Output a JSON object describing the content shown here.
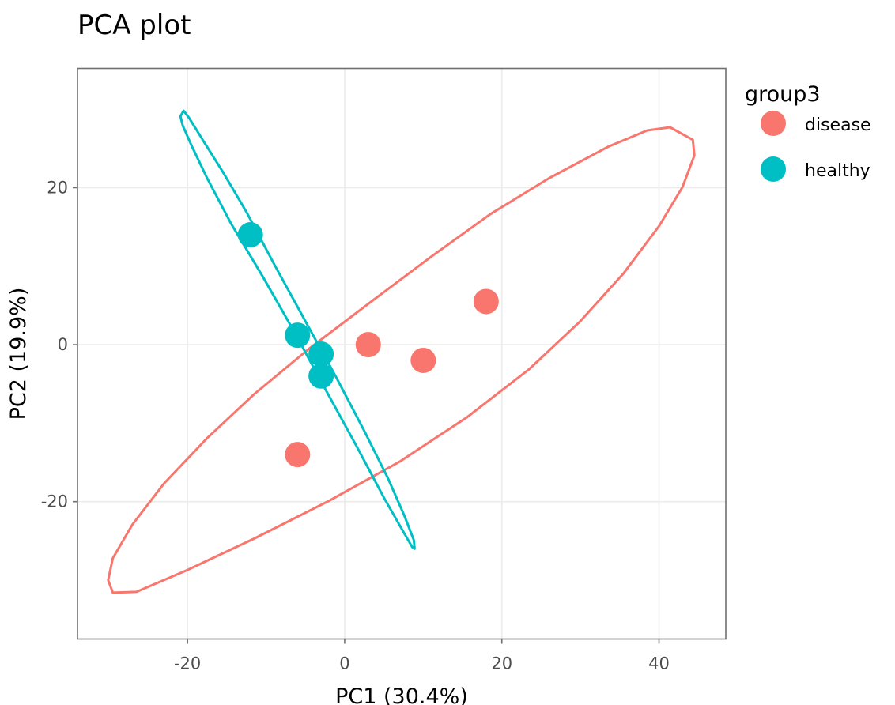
{
  "chart_data": {
    "type": "scatter",
    "title": "PCA plot",
    "xlabel": "PC1 (30.4%)",
    "ylabel": "PC2 (19.9%)",
    "xlim": [
      -34,
      48.5
    ],
    "ylim": [
      -37.5,
      35.2
    ],
    "x_ticks": [
      -20,
      0,
      20,
      40
    ],
    "y_ticks": [
      -20,
      0,
      20
    ],
    "x_tick_labels": [
      "-20",
      "0",
      "20",
      "40"
    ],
    "y_tick_labels": [
      "-20",
      "0",
      "20"
    ],
    "grid": true,
    "legend": {
      "title": "group3",
      "position": "right",
      "entries": [
        "disease",
        "healthy"
      ]
    },
    "series": [
      {
        "name": "disease",
        "color": "#F8766D",
        "points": [
          {
            "x": 3,
            "y": 0
          },
          {
            "x": 10,
            "y": -2
          },
          {
            "x": 18,
            "y": 5.5
          },
          {
            "x": -6,
            "y": -14
          }
        ],
        "ellipse": [
          {
            "x": 41.4,
            "y": 27.7
          },
          {
            "x": 44.3,
            "y": 26.1
          },
          {
            "x": 44.5,
            "y": 24.1
          },
          {
            "x": 43.0,
            "y": 20.1
          },
          {
            "x": 40.0,
            "y": 15.1
          },
          {
            "x": 35.5,
            "y": 9.1
          },
          {
            "x": 30.0,
            "y": 3.0
          },
          {
            "x": 23.5,
            "y": -3.1
          },
          {
            "x": 15.5,
            "y": -9.3
          },
          {
            "x": 7.0,
            "y": -14.9
          },
          {
            "x": -2.0,
            "y": -19.9
          },
          {
            "x": -11.5,
            "y": -24.7
          },
          {
            "x": -20.0,
            "y": -28.7
          },
          {
            "x": -26.5,
            "y": -31.5
          },
          {
            "x": -29.5,
            "y": -31.6
          },
          {
            "x": -30.1,
            "y": -30.0
          },
          {
            "x": -29.5,
            "y": -27.2
          },
          {
            "x": -27.0,
            "y": -22.9
          },
          {
            "x": -23.0,
            "y": -17.7
          },
          {
            "x": -17.5,
            "y": -11.9
          },
          {
            "x": -11.5,
            "y": -6.3
          },
          {
            "x": -4.5,
            "y": -0.5
          },
          {
            "x": 3.0,
            "y": 5.2
          },
          {
            "x": 11.0,
            "y": 11.2
          },
          {
            "x": 18.5,
            "y": 16.6
          },
          {
            "x": 26.0,
            "y": 21.2
          },
          {
            "x": 33.5,
            "y": 25.2
          },
          {
            "x": 38.5,
            "y": 27.3
          },
          {
            "x": 41.4,
            "y": 27.7
          }
        ]
      },
      {
        "name": "healthy",
        "color": "#00BFC4",
        "points": [
          {
            "x": -12,
            "y": 14
          },
          {
            "x": -6,
            "y": 1.2
          },
          {
            "x": -3,
            "y": -1.2
          },
          {
            "x": -3,
            "y": -4
          }
        ],
        "ellipse": [
          {
            "x": -20.5,
            "y": 29.8
          },
          {
            "x": -20.9,
            "y": 29.1
          },
          {
            "x": -20.6,
            "y": 27.9
          },
          {
            "x": -19.5,
            "y": 25.4
          },
          {
            "x": -17.5,
            "y": 21.2
          },
          {
            "x": -14.5,
            "y": 15.5
          },
          {
            "x": -10.5,
            "y": 8.8
          },
          {
            "x": -6.5,
            "y": 1.8
          },
          {
            "x": -2.5,
            "y": -5.6
          },
          {
            "x": 1.5,
            "y": -12.9
          },
          {
            "x": 5.0,
            "y": -19.5
          },
          {
            "x": 7.5,
            "y": -23.9
          },
          {
            "x": 8.6,
            "y": -25.8
          },
          {
            "x": 8.9,
            "y": -26.0
          },
          {
            "x": 8.8,
            "y": -24.9
          },
          {
            "x": 7.6,
            "y": -21.8
          },
          {
            "x": 5.5,
            "y": -17.0
          },
          {
            "x": 2.5,
            "y": -11.0
          },
          {
            "x": -1.0,
            "y": -4.3
          },
          {
            "x": -5.0,
            "y": 3.0
          },
          {
            "x": -9.0,
            "y": 10.3
          },
          {
            "x": -12.5,
            "y": 16.9
          },
          {
            "x": -15.5,
            "y": 22.0
          },
          {
            "x": -18.0,
            "y": 26.0
          },
          {
            "x": -19.8,
            "y": 28.9
          },
          {
            "x": -20.5,
            "y": 29.8
          }
        ]
      }
    ]
  }
}
